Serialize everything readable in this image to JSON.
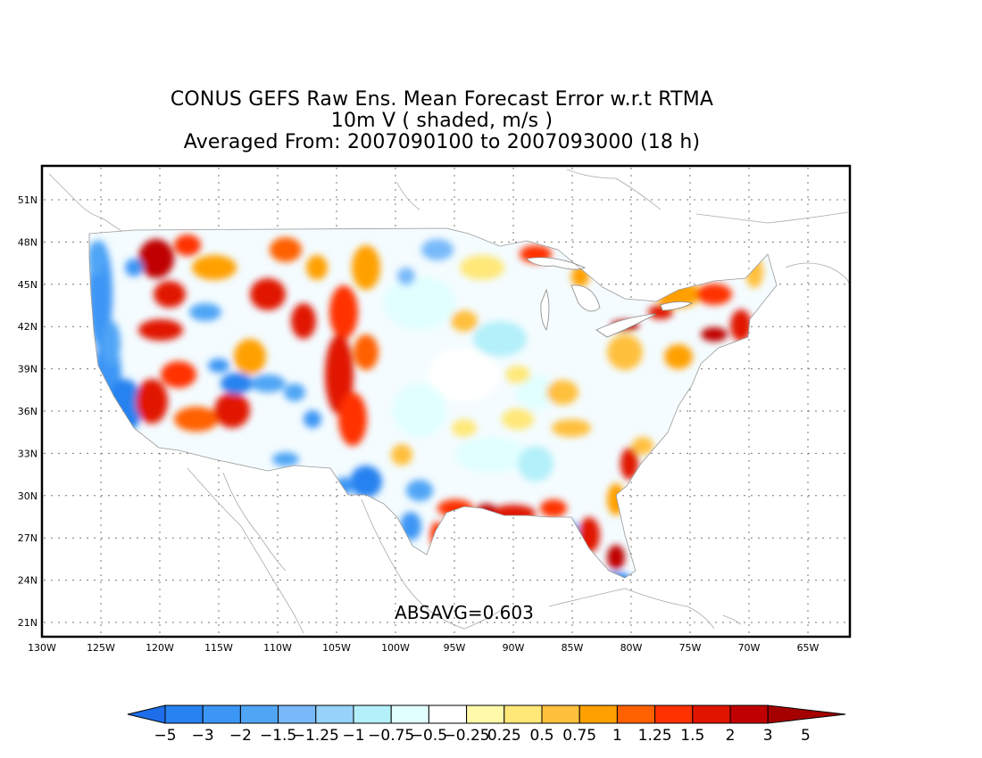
{
  "title": {
    "line1": "CONUS GEFS Raw Ens. Mean Forecast Error w.r.t RTMA",
    "line2": "10m V ( shaded, m/s )",
    "line3": "Averaged From: 2007090100 to 2007093000 (18 h)"
  },
  "annotation": "ABSAVG=0.603",
  "lat_ticks": [
    "51N",
    "48N",
    "45N",
    "42N",
    "39N",
    "36N",
    "33N",
    "30N",
    "27N",
    "24N",
    "21N"
  ],
  "lon_ticks": [
    "130W",
    "125W",
    "120W",
    "115W",
    "110W",
    "105W",
    "100W",
    "95W",
    "90W",
    "85W",
    "80W",
    "75W",
    "70W",
    "65W"
  ],
  "colorbar": {
    "labels": [
      "-5",
      "-3",
      "-2",
      "-1.5",
      "-1.25",
      "-1",
      "-0.75",
      "-0.5",
      "-0.25",
      "0.25",
      "0.5",
      "0.75",
      "1",
      "1.25",
      "1.5",
      "2",
      "3",
      "5"
    ],
    "colors": [
      "#1e6eeb",
      "#2882f0",
      "#3c96f5",
      "#50a5f5",
      "#78b9fa",
      "#96d2fa",
      "#b4f0fa",
      "#e1ffff",
      "#ffffff",
      "#fffaaa",
      "#ffe878",
      "#ffc03c",
      "#ffa000",
      "#ff6000",
      "#ff3200",
      "#e11400",
      "#c00000",
      "#a50000"
    ]
  }
}
